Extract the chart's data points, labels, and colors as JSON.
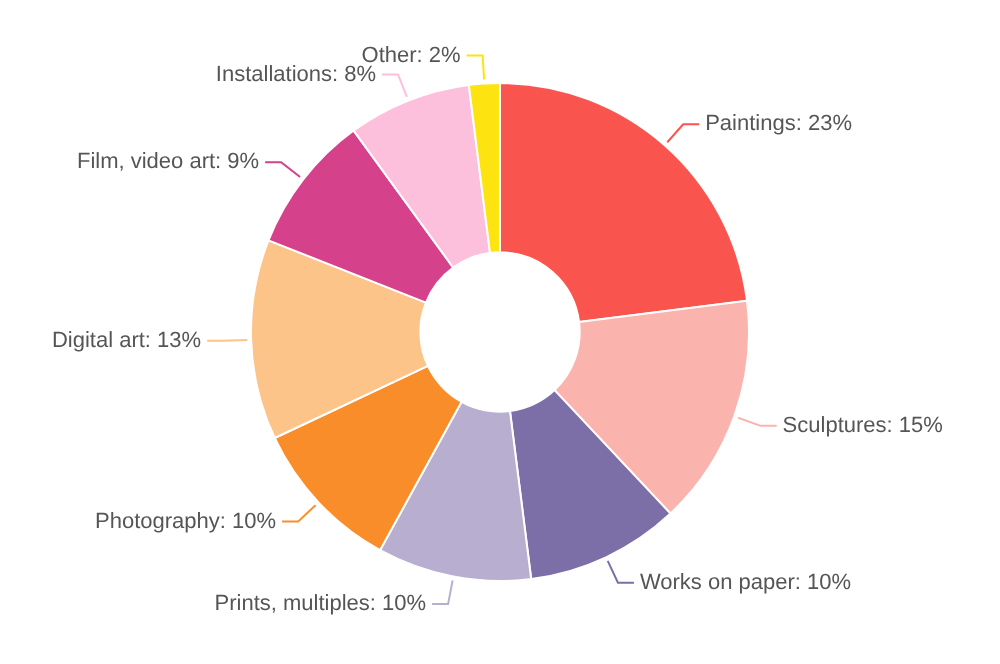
{
  "chart_data": {
    "type": "donut",
    "categories": [
      "Paintings",
      "Sculptures",
      "Works on paper",
      "Prints, multiples",
      "Photography",
      "Digital art",
      "Film, video art",
      "Installations",
      "Other"
    ],
    "values": [
      23,
      15,
      10,
      10,
      10,
      13,
      9,
      8,
      2
    ],
    "value_labels": [
      "23%",
      "15%",
      "10%",
      "10%",
      "10%",
      "13%",
      "9%",
      "8%",
      "2%"
    ],
    "colors": [
      "#f9554e",
      "#fbb3ae",
      "#7c6ea6",
      "#b8aed0",
      "#f98d2a",
      "#fdc48a",
      "#d5418a",
      "#fdc0dc",
      "#fde30f"
    ],
    "legend": false
  }
}
